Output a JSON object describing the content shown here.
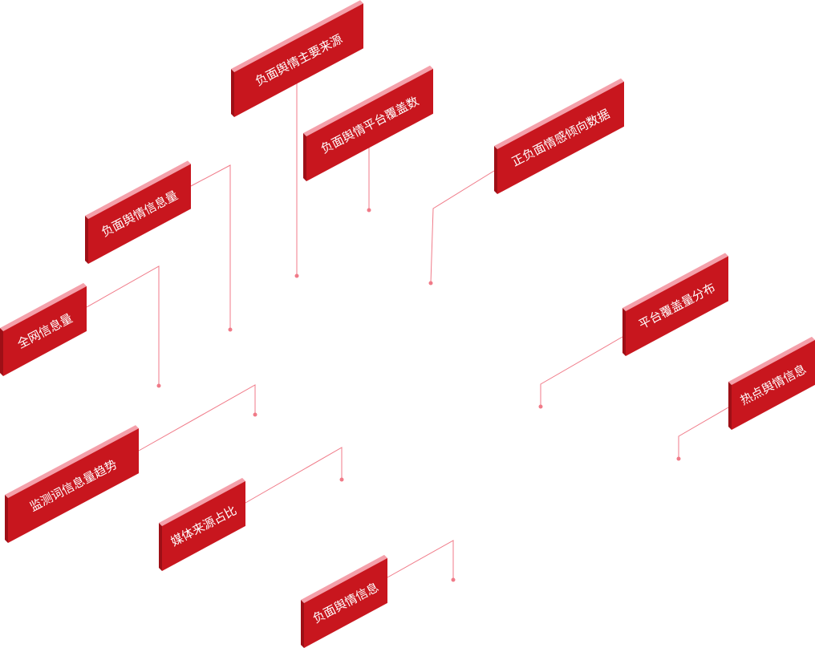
{
  "colors": {
    "face": "#c8161e",
    "side": "#9e0f16",
    "top": "#f4a0aa",
    "line": "#f07a88",
    "text": "#ffffff"
  },
  "labels": [
    {
      "text": "负面舆情主要来源"
    },
    {
      "text": "负面舆情平台覆盖数"
    },
    {
      "text": "正负面情感倾向数据"
    },
    {
      "text": "负面舆情信息量"
    },
    {
      "text": "全网信息量"
    },
    {
      "text": "平台覆盖量分布"
    },
    {
      "text": "热点舆情信息"
    },
    {
      "text": "监测词信息量趋势"
    },
    {
      "text": "媒体来源占比"
    },
    {
      "text": "负面舆情信息"
    }
  ]
}
